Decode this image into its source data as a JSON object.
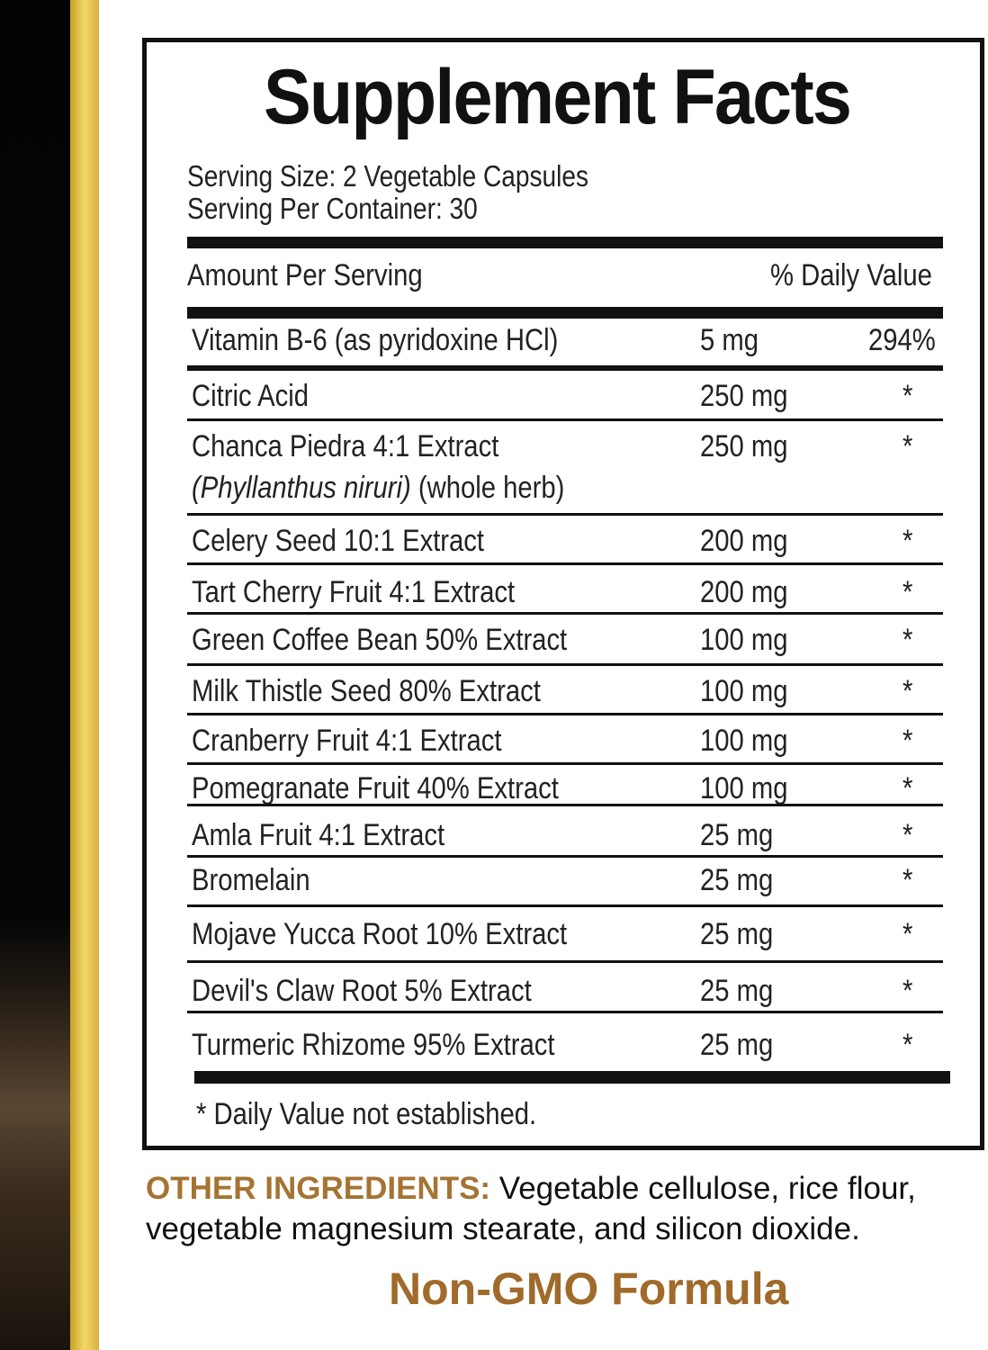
{
  "title": "Supplement Facts",
  "serving_size": "Serving Size: 2 Vegetable Capsules",
  "servings_per_container": "Serving Per Container: 30",
  "header": {
    "amount": "Amount Per Serving",
    "dv": "% Daily Value"
  },
  "rows": [
    {
      "name": "Vitamin B-6 (as pyridoxine HCl)",
      "amount": "5 mg",
      "dv": "294%"
    },
    {
      "name": "Citric Acid",
      "amount": "250 mg",
      "dv": "*"
    },
    {
      "name": "Chanca Piedra 4:1 Extract",
      "name2_italic": "(Phyllanthus niruri)",
      "name2": " (whole herb)",
      "amount": "250 mg",
      "dv": "*"
    },
    {
      "name": "Celery Seed 10:1 Extract",
      "amount": "200 mg",
      "dv": "*"
    },
    {
      "name": "Tart Cherry Fruit 4:1 Extract",
      "amount": "200 mg",
      "dv": "*"
    },
    {
      "name": "Green Coffee Bean 50% Extract",
      "amount": "100 mg",
      "dv": "*"
    },
    {
      "name": "Milk Thistle Seed 80% Extract",
      "amount": "100 mg",
      "dv": "*"
    },
    {
      "name": "Cranberry Fruit 4:1 Extract",
      "amount": "100 mg",
      "dv": "*"
    },
    {
      "name": "Pomegranate Fruit 40% Extract",
      "amount": "100 mg",
      "dv": "*"
    },
    {
      "name": "Amla Fruit 4:1 Extract",
      "amount": "25 mg",
      "dv": "*"
    },
    {
      "name": "Bromelain",
      "amount": "25 mg",
      "dv": "*"
    },
    {
      "name": "Mojave Yucca Root 10% Extract",
      "amount": "25 mg",
      "dv": "*"
    },
    {
      "name": "Devil's Claw Root 5% Extract",
      "amount": "25 mg",
      "dv": "*"
    },
    {
      "name": "Turmeric Rhizome 95% Extract",
      "amount": "25 mg",
      "dv": "*"
    }
  ],
  "footnote": "* Daily Value not established.",
  "other_label": "OTHER INGREDIENTS:",
  "other_text": " Vegetable cellulose, rice flour, vegetable magnesium stearate, and silicon dioxide.",
  "badge": "Non-GMO Formula",
  "colors": {
    "gold": "#a57432",
    "black": "#111111"
  }
}
